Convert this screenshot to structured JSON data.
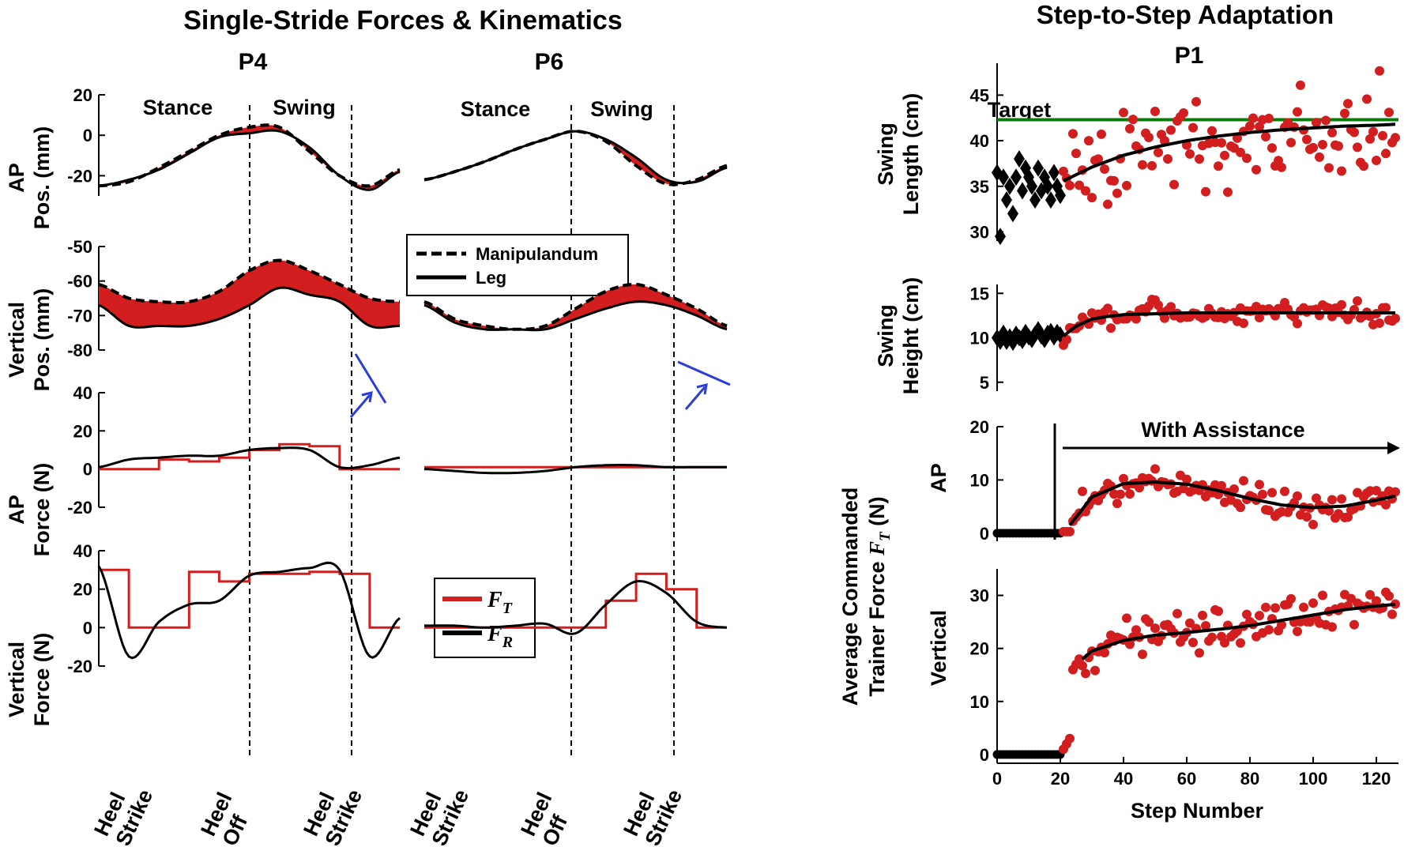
{
  "left_section": {
    "title": "Single-Stride Forces & Kinematics",
    "col_p4": "P4",
    "col_p6": "P6",
    "phase_stance": "Stance",
    "phase_swing": "Swing",
    "x_events": [
      {
        "l1": "Heel",
        "l2": "Strike"
      },
      {
        "l1": "Heel",
        "l2": "Off"
      },
      {
        "l1": "Heel",
        "l2": "Strike"
      }
    ],
    "legend_pos": {
      "dashed": "Manipulandum",
      "solid": "Leg"
    },
    "legend_force": {
      "red": "F",
      "red_sub": "T",
      "black": "F",
      "black_sub": "R"
    }
  },
  "right_section": {
    "title": "Step-to-Step Adaptation",
    "participant": "P1",
    "target_label": "Target",
    "assist_label": "With Assistance",
    "xlabel": "Step Number",
    "group_ylabel_1": "Average Commanded",
    "group_ylabel_2": "Trainer Force",
    "group_ylabel_sym": "F",
    "group_ylabel_sub": "T",
    "group_ylabel_unit": "(N)"
  },
  "colors": {
    "red": "#d21e1e",
    "black": "#000000",
    "green": "#0a7a0a",
    "blue": "#2a3cdc"
  },
  "chart_data": [
    {
      "type": "line",
      "title": "P4",
      "row": "ap_pos",
      "ylabel": [
        "AP",
        "Pos. (mm)"
      ],
      "ylim": [
        -30,
        20
      ],
      "yticks": [
        20,
        0,
        -20
      ],
      "x": [
        0,
        10,
        20,
        30,
        40,
        50,
        60,
        70,
        80,
        90,
        100
      ],
      "series": [
        {
          "name": "Manipulandum",
          "style": "dashed",
          "values": [
            -25,
            -23,
            -16,
            -8,
            0,
            4,
            4,
            -8,
            -20,
            -25,
            -17
          ]
        },
        {
          "name": "Leg",
          "style": "solid",
          "values": [
            -25,
            -22,
            -17,
            -9,
            -1,
            1,
            2,
            -6,
            -20,
            -27,
            -18
          ]
        }
      ]
    },
    {
      "type": "line",
      "title": "P6",
      "row": "ap_pos",
      "ylim": [
        -30,
        20
      ],
      "x": [
        0,
        10,
        20,
        30,
        40,
        50,
        60,
        70,
        80,
        90,
        100
      ],
      "series": [
        {
          "name": "Manipulandum",
          "style": "dashed",
          "values": [
            -22,
            -18,
            -13,
            -7,
            -2,
            2,
            -3,
            -15,
            -24,
            -22,
            -15
          ]
        },
        {
          "name": "Leg",
          "style": "solid",
          "values": [
            -22,
            -18,
            -13,
            -7,
            -2,
            2,
            -2,
            -11,
            -22,
            -23,
            -16
          ]
        }
      ]
    },
    {
      "type": "line",
      "title": "P4",
      "row": "vert_pos",
      "ylabel": [
        "Vertical",
        "Pos. (mm)"
      ],
      "ylim": [
        -80,
        -50
      ],
      "yticks": [
        -50,
        -60,
        -70,
        -80
      ],
      "x": [
        0,
        10,
        20,
        30,
        40,
        50,
        60,
        70,
        80,
        90,
        100
      ],
      "series": [
        {
          "name": "Manipulandum",
          "style": "dashed",
          "values": [
            -61,
            -65,
            -66,
            -66,
            -63,
            -57,
            -54,
            -57,
            -61,
            -65,
            -66
          ]
        },
        {
          "name": "Leg",
          "style": "solid",
          "values": [
            -67,
            -73,
            -73,
            -73,
            -71,
            -67,
            -62,
            -64,
            -66,
            -73,
            -73
          ]
        }
      ]
    },
    {
      "type": "line",
      "title": "P6",
      "row": "vert_pos",
      "ylim": [
        -80,
        -50
      ],
      "x": [
        0,
        10,
        20,
        30,
        40,
        50,
        60,
        70,
        80,
        90,
        100
      ],
      "series": [
        {
          "name": "Manipulandum",
          "style": "dashed",
          "values": [
            -66,
            -71,
            -73,
            -74,
            -73,
            -68,
            -63,
            -61,
            -64,
            -68,
            -73
          ]
        },
        {
          "name": "Leg",
          "style": "solid",
          "values": [
            -67,
            -72,
            -74,
            -74,
            -74,
            -71,
            -68,
            -66,
            -67,
            -70,
            -74
          ]
        }
      ]
    },
    {
      "type": "line",
      "title": "P4",
      "row": "ap_force",
      "ylabel": [
        "AP",
        "Force (N)"
      ],
      "ylim": [
        -20,
        40
      ],
      "yticks": [
        40,
        20,
        0,
        -20
      ],
      "x": [
        0,
        10,
        20,
        30,
        40,
        50,
        60,
        70,
        80,
        90,
        100
      ],
      "series": [
        {
          "name": "F_T",
          "style": "red",
          "values": [
            0,
            0,
            5,
            4,
            6,
            10,
            13,
            12,
            0,
            0,
            0
          ]
        },
        {
          "name": "F_R",
          "style": "black",
          "values": [
            1,
            5,
            6,
            7,
            7,
            10,
            11,
            10,
            1,
            2,
            6
          ]
        }
      ]
    },
    {
      "type": "line",
      "title": "P6",
      "row": "ap_force",
      "ylim": [
        -20,
        40
      ],
      "x": [
        0,
        10,
        20,
        30,
        40,
        50,
        60,
        70,
        80,
        90,
        100
      ],
      "series": [
        {
          "name": "F_T",
          "style": "red",
          "values": [
            1,
            1,
            1,
            1,
            1,
            1,
            1,
            1,
            1,
            1,
            1
          ]
        },
        {
          "name": "F_R",
          "style": "black",
          "values": [
            0,
            -1,
            -2,
            -2,
            -1,
            1,
            2,
            2,
            1,
            1,
            1
          ]
        }
      ]
    },
    {
      "type": "line",
      "title": "P4",
      "row": "vert_force",
      "ylabel": [
        "Vertical",
        "Force (N)"
      ],
      "ylim": [
        -20,
        40
      ],
      "yticks": [
        40,
        20,
        0,
        -20
      ],
      "x": [
        0,
        10,
        20,
        30,
        40,
        50,
        60,
        70,
        80,
        90,
        100
      ],
      "series": [
        {
          "name": "F_T",
          "style": "red",
          "values": [
            30,
            0,
            0,
            29,
            24,
            28,
            28,
            29,
            28,
            0,
            0
          ]
        },
        {
          "name": "F_R",
          "style": "black",
          "values": [
            32,
            -15,
            3,
            12,
            14,
            27,
            29,
            31,
            30,
            -15,
            5
          ]
        }
      ]
    },
    {
      "type": "line",
      "title": "P6",
      "row": "vert_force",
      "ylim": [
        -20,
        40
      ],
      "x": [
        0,
        10,
        20,
        30,
        40,
        50,
        60,
        70,
        80,
        90,
        100
      ],
      "series": [
        {
          "name": "F_T",
          "style": "red",
          "values": [
            0,
            0,
            0,
            0,
            0,
            0,
            14,
            28,
            20,
            0,
            0
          ]
        },
        {
          "name": "F_R",
          "style": "black",
          "values": [
            1,
            1,
            0,
            1,
            2,
            -3,
            12,
            24,
            18,
            3,
            0
          ]
        }
      ]
    },
    {
      "type": "scatter",
      "title": "P1",
      "panel": "swing_length",
      "ylabel": [
        "Swing",
        "Length (cm)"
      ],
      "xlim": [
        0,
        127
      ],
      "ylim": [
        29,
        48.5
      ],
      "yticks": [
        30,
        35,
        40,
        45
      ],
      "target": 42.3,
      "baseline": {
        "x": [
          0,
          1,
          2,
          3,
          4,
          5,
          6,
          7,
          8,
          9,
          10,
          11,
          12,
          13,
          14,
          15,
          16,
          17,
          18,
          19,
          20
        ],
        "y": [
          36.5,
          29.5,
          36,
          33.5,
          35,
          32,
          36,
          38,
          34.5,
          37,
          36,
          35,
          33.5,
          37,
          34.5,
          36,
          35,
          33.5,
          36.5,
          35,
          34
        ]
      },
      "fit_x": [
        21,
        30,
        40,
        50,
        60,
        70,
        80,
        90,
        100,
        110,
        120,
        126
      ],
      "fit_y": [
        35.6,
        37.1,
        38.4,
        39.3,
        40.0,
        40.5,
        40.9,
        41.2,
        41.4,
        41.6,
        41.7,
        41.8
      ]
    },
    {
      "type": "scatter",
      "title": "P1",
      "panel": "swing_height",
      "ylabel": [
        "Swing",
        "Height (cm)"
      ],
      "xlim": [
        0,
        127
      ],
      "ylim": [
        4,
        16
      ],
      "yticks": [
        5,
        10,
        15
      ],
      "baseline": {
        "x": [
          0,
          1,
          2,
          3,
          4,
          5,
          6,
          7,
          8,
          9,
          10,
          11,
          12,
          13,
          14,
          15,
          16,
          17,
          18,
          19,
          20
        ],
        "y": [
          10,
          9.6,
          10.5,
          9.6,
          10.1,
          9.5,
          10.4,
          10,
          9.7,
          10.6,
          10.1,
          9.8,
          10.4,
          10.9,
          10.2,
          9.8,
          10.5,
          10.7,
          10.1,
          10.6,
          10.3
        ]
      },
      "fit_x": [
        21,
        25,
        30,
        35,
        40,
        50,
        60,
        80,
        100,
        126
      ],
      "fit_y": [
        10.2,
        11.3,
        12.1,
        12.4,
        12.6,
        12.7,
        12.8,
        12.8,
        12.8,
        12.8
      ]
    },
    {
      "type": "scatter",
      "title": "P1",
      "panel": "ap_trainer_force",
      "ylabel": [
        "AP"
      ],
      "xlim": [
        0,
        127
      ],
      "ylim": [
        -1.5,
        20
      ],
      "yticks": [
        0,
        10,
        20
      ],
      "baseline": {
        "x": [
          0,
          1,
          2,
          3,
          4,
          5,
          6,
          7,
          8,
          9,
          10,
          11,
          12,
          13,
          14,
          15,
          16,
          17,
          18,
          19,
          20
        ],
        "y": [
          0,
          0,
          0,
          0,
          0,
          0,
          0,
          0,
          0,
          0,
          0,
          0,
          0,
          0,
          0,
          0,
          0,
          0,
          0,
          0,
          0
        ]
      },
      "fit_x": [
        23,
        30,
        40,
        50,
        60,
        70,
        80,
        90,
        100,
        110,
        120,
        126
      ],
      "fit_y": [
        1.5,
        6.8,
        9.3,
        9.6,
        9.2,
        8.0,
        6.5,
        5.3,
        4.8,
        5.1,
        6.2,
        7.0
      ]
    },
    {
      "type": "scatter",
      "title": "P1",
      "panel": "vertical_trainer_force",
      "ylabel": [
        "Vertical"
      ],
      "xlim": [
        0,
        127
      ],
      "ylim": [
        -1.5,
        35
      ],
      "yticks": [
        0,
        10,
        20,
        30
      ],
      "baseline": {
        "x": [
          0,
          1,
          2,
          3,
          4,
          5,
          6,
          7,
          8,
          9,
          10,
          11,
          12,
          13,
          14,
          15,
          16,
          17,
          18,
          19,
          20
        ],
        "y": [
          0,
          0,
          0,
          0,
          0,
          0,
          0,
          0,
          0,
          0,
          0,
          0,
          0,
          0,
          0,
          0,
          0,
          0,
          0,
          0,
          0
        ]
      },
      "fit_x": [
        27,
        30,
        40,
        50,
        60,
        70,
        80,
        90,
        100,
        110,
        120,
        126
      ],
      "fit_y": [
        18,
        19.5,
        21.5,
        22.5,
        23.0,
        23.6,
        24.3,
        25.3,
        26.3,
        27.3,
        28.0,
        28.3
      ]
    },
    {
      "type": "axis",
      "panel": "step_axis",
      "xlabel": "Step Number",
      "xticks": [
        0,
        20,
        40,
        60,
        80,
        100,
        120
      ]
    }
  ]
}
